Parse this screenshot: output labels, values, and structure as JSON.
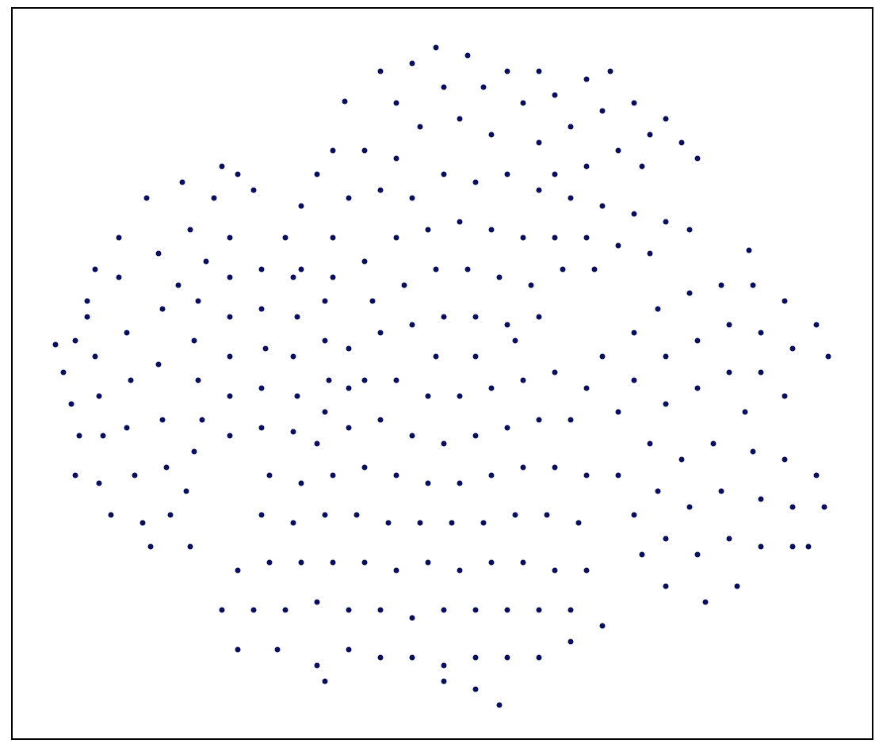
{
  "chart_data": {
    "type": "scatter",
    "color": "#0a0f5c",
    "xlim": [
      15,
      1101
    ],
    "ylim": [
      933,
      10
    ],
    "x": [
      70,
      80,
      90,
      100,
      95,
      110,
      120,
      125,
      130,
      125,
      140,
      150,
      150,
      160,
      165,
      160,
      170,
      180,
      190,
      185,
      200,
      205,
      200,
      205,
      210,
      215,
      240,
      230,
      240,
      225,
      235,
      245,
      270,
      280,
      300,
      320,
      290,
      260,
      110,
      95,
      250,
      245,
      250,
      255,
      290,
      290,
      290,
      290,
      290,
      330,
      330,
      335,
      330,
      330,
      370,
      375,
      370,
      375,
      370,
      410,
      410,
      415,
      410,
      440,
      440,
      480,
      500,
      520,
      530,
      550,
      560,
      580,
      590,
      610,
      620,
      640,
      660,
      680,
      680,
      700,
      720,
      740,
      760,
      770,
      780,
      800,
      820,
      840,
      860,
      880,
      740,
      700,
      810,
      360,
      380,
      400,
      420,
      460,
      500,
      380,
      420,
      440,
      480,
      520,
      560,
      600,
      640,
      680,
      720,
      760,
      800,
      840,
      870,
      420,
      460,
      500,
      540,
      580,
      620,
      660,
      700,
      740,
      780,
      820,
      470,
      510,
      550,
      590,
      630,
      670,
      710,
      750,
      480,
      520,
      560,
      600,
      640,
      680,
      550,
      600,
      650,
      460,
      500,
      540,
      580,
      620,
      660,
      700,
      400,
      440,
      480,
      520,
      560,
      600,
      640,
      680,
      720,
      340,
      380,
      420,
      460,
      500,
      540,
      580,
      620,
      660,
      700,
      740,
      330,
      370,
      410,
      450,
      490,
      530,
      570,
      610,
      650,
      690,
      730,
      300,
      340,
      380,
      420,
      460,
      500,
      540,
      580,
      620,
      660,
      700,
      740,
      280,
      320,
      360,
      400,
      440,
      480,
      520,
      560,
      600,
      640,
      680,
      720,
      300,
      350,
      400,
      440,
      480,
      520,
      560,
      600,
      640,
      680,
      720,
      410,
      560,
      600,
      630,
      760,
      740,
      760,
      780,
      800,
      800,
      830,
      840,
      840,
      870,
      880,
      880,
      910,
      920,
      920,
      950,
      960,
      960,
      990,
      1000,
      1030,
      1045,
      940,
      990,
      780,
      800,
      810,
      820,
      830,
      840,
      840,
      860,
      870,
      880,
      890,
      900,
      910,
      920,
      930,
      950,
      960,
      960,
      990,
      1000,
      1000,
      1030,
      1040,
      1020,
      435,
      945,
      120
    ],
    "values": [
      435,
      470,
      510,
      550,
      600,
      400,
      450,
      500,
      550,
      610,
      650,
      350,
      300,
      420,
      480,
      540,
      600,
      660,
      690,
      250,
      320,
      390,
      460,
      530,
      590,
      650,
      690,
      230,
      290,
      360,
      620,
      570,
      250,
      210,
      220,
      240,
      300,
      330,
      380,
      430,
      380,
      430,
      480,
      530,
      350,
      400,
      450,
      500,
      550,
      340,
      390,
      440,
      490,
      540,
      350,
      400,
      450,
      500,
      545,
      380,
      430,
      480,
      520,
      440,
      490,
      90,
      130,
      80,
      160,
      60,
      110,
      150,
      70,
      110,
      170,
      90,
      130,
      90,
      180,
      120,
      160,
      100,
      140,
      90,
      190,
      130,
      170,
      150,
      180,
      200,
      210,
      220,
      210,
      300,
      260,
      220,
      190,
      190,
      200,
      340,
      300,
      250,
      240,
      250,
      220,
      230,
      220,
      240,
      250,
      260,
      270,
      280,
      290,
      350,
      330,
      300,
      290,
      280,
      290,
      300,
      300,
      300,
      310,
      320,
      380,
      360,
      340,
      340,
      350,
      360,
      340,
      340,
      420,
      410,
      400,
      400,
      410,
      400,
      450,
      450,
      430,
      480,
      480,
      500,
      500,
      490,
      480,
      470,
      560,
      540,
      530,
      550,
      560,
      550,
      540,
      530,
      530,
      600,
      610,
      600,
      590,
      600,
      610,
      610,
      600,
      590,
      590,
      600,
      650,
      660,
      650,
      650,
      660,
      660,
      660,
      660,
      650,
      650,
      660,
      720,
      710,
      710,
      710,
      710,
      720,
      710,
      720,
      710,
      710,
      720,
      720,
      770,
      770,
      770,
      760,
      770,
      770,
      780,
      770,
      770,
      770,
      770,
      770,
      820,
      820,
      840,
      820,
      830,
      830,
      840,
      830,
      830,
      830,
      810,
      860,
      860,
      870,
      890,
      790,
      490,
      450,
      520,
      420,
      480,
      390,
      450,
      510,
      370,
      430,
      490,
      360,
      410,
      470,
      360,
      420,
      470,
      380,
      440,
      410,
      450,
      520,
      500,
      600,
      650,
      700,
      560,
      620,
      680,
      740,
      580,
      640,
      700,
      760,
      560,
      620,
      680,
      740,
      570,
      630,
      690,
      580,
      640,
      690,
      600,
      640,
      690,
      128,
      316,
      340
    ]
  }
}
